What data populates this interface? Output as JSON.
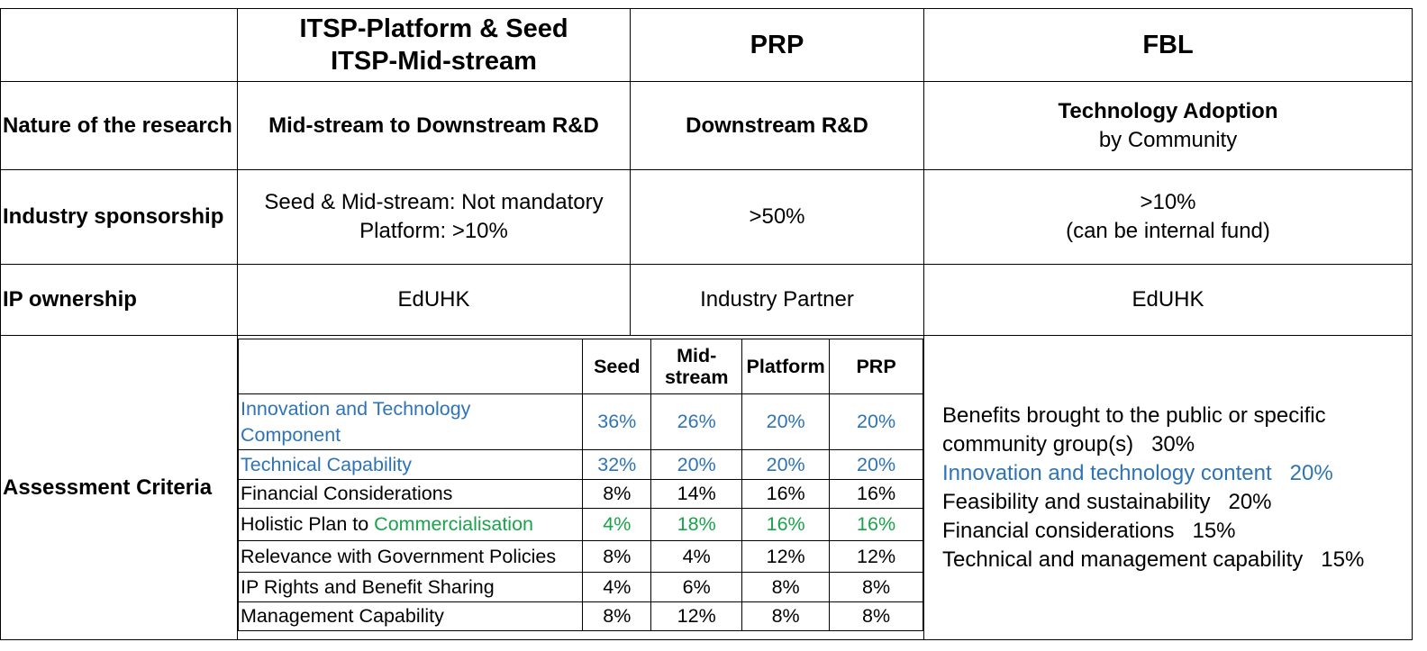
{
  "header": {
    "col1_line1": "ITSP-Platform & Seed",
    "col1_line2": "ITSP-Mid-stream",
    "col2": "PRP",
    "col3": "FBL"
  },
  "rows": {
    "nature": {
      "label": "Nature of the research",
      "col1": "Mid-stream to Downstream R&D",
      "col2": "Downstream R&D",
      "col3_line1": "Technology Adoption",
      "col3_line2": "by Community"
    },
    "sponsorship": {
      "label": "Industry sponsorship",
      "col1_line1": "Seed & Mid-stream: Not mandatory",
      "col1_line2": "Platform: >10%",
      "col2": ">50%",
      "col3_line1": ">10%",
      "col3_line2": "(can be internal fund)"
    },
    "ip": {
      "label": "IP ownership",
      "col1": "EdUHK",
      "col2": "Industry Partner",
      "col3": "EdUHK"
    },
    "assessment": {
      "label": "Assessment Criteria"
    }
  },
  "criteria_table": {
    "headers": [
      "Seed",
      "Mid-stream",
      "Platform",
      "PRP"
    ],
    "header_midstream_line1": "Mid-",
    "header_midstream_line2": "stream",
    "rows": [
      {
        "label": "Innovation and Technology Component",
        "label_line1": "Innovation and Technology",
        "label_line2": "Component",
        "color": "#2e74b5",
        "values": [
          "36%",
          "26%",
          "20%",
          "20%"
        ]
      },
      {
        "label": "Technical Capability",
        "color": "#2e74b5",
        "values": [
          "32%",
          "20%",
          "20%",
          "20%"
        ]
      },
      {
        "label": "Financial Considerations",
        "color": "#000000",
        "values": [
          "8%",
          "14%",
          "16%",
          "16%"
        ]
      },
      {
        "label_prefix": "Holistic Plan to ",
        "label_highlight": "Commercialisation",
        "color": "#1aa34a",
        "values": [
          "4%",
          "18%",
          "16%",
          "16%"
        ]
      },
      {
        "label": "Relevance with Government Policies",
        "color": "#000000",
        "values": [
          "8%",
          "4%",
          "12%",
          "12%"
        ]
      },
      {
        "label": "IP Rights and Benefit Sharing",
        "color": "#000000",
        "values": [
          "4%",
          "6%",
          "8%",
          "8%"
        ]
      },
      {
        "label": "Management Capability",
        "color": "#000000",
        "values": [
          "8%",
          "12%",
          "8%",
          "8%"
        ]
      }
    ]
  },
  "fbl_criteria": [
    {
      "line1": "Benefits brought to the public or specific",
      "line2": "community group(s)   30%",
      "color": "#000000"
    },
    {
      "text": "Innovation and technology content   20%",
      "color": "#2e74b5"
    },
    {
      "text": "Feasibility and sustainability   20%",
      "color": "#000000"
    },
    {
      "text": "Financial considerations   15%",
      "color": "#000000"
    },
    {
      "text": "Technical and management capability   15%",
      "color": "#000000"
    }
  ]
}
